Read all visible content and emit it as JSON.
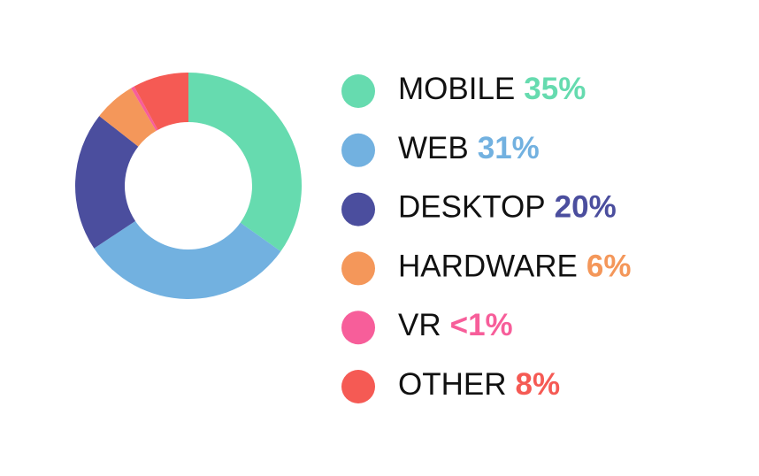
{
  "chart_data": {
    "type": "pie",
    "donut": true,
    "categories": [
      "MOBILE",
      "WEB",
      "DESKTOP",
      "HARDWARE",
      "VR",
      "OTHER"
    ],
    "values": [
      35,
      31,
      20,
      6,
      0.5,
      8
    ],
    "value_labels": [
      "35%",
      "31%",
      "20%",
      "6%",
      "<1%",
      "8%"
    ],
    "colors": [
      "#66dbaf",
      "#72b1e0",
      "#4b4e9e",
      "#f4975a",
      "#f75e9a",
      "#f55a54"
    ]
  }
}
